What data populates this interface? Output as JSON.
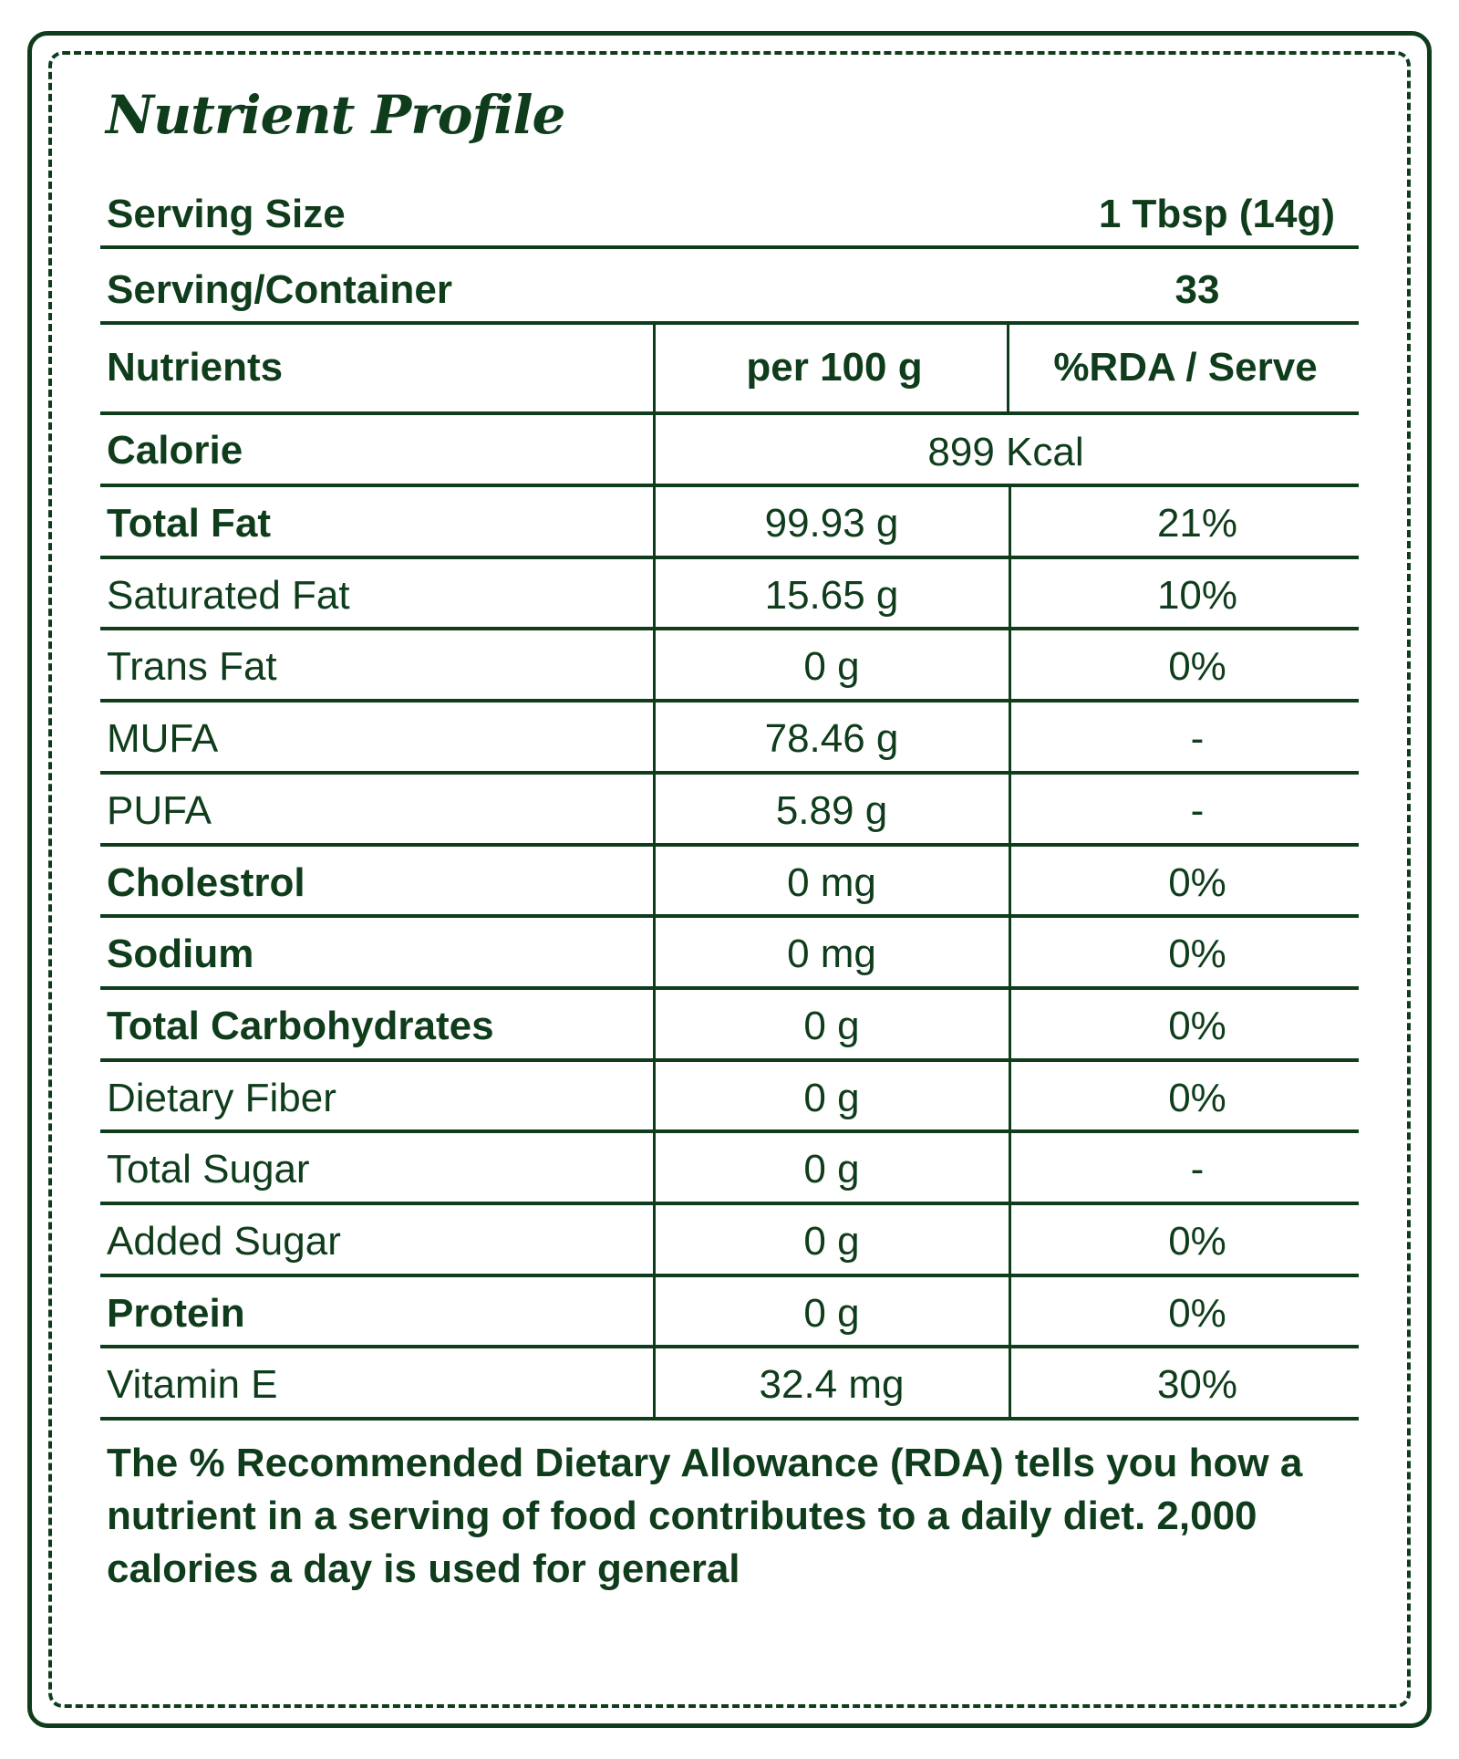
{
  "title": "Nutrient Profile",
  "serving": {
    "size_label": "Serving Size",
    "size_value": "1 Tbsp (14g)",
    "container_label": "Serving/Container",
    "container_value": "33"
  },
  "table": {
    "headers": [
      "Nutrients",
      "per 100 g",
      "%RDA / Serve"
    ],
    "calorie": {
      "label": "Calorie",
      "value": "899 Kcal"
    },
    "rows": [
      {
        "name": "Total Fat",
        "per100": "99.93 g",
        "rda": "21%",
        "bold": true
      },
      {
        "name": "Saturated Fat",
        "per100": "15.65 g",
        "rda": "10%",
        "bold": false
      },
      {
        "name": "Trans Fat",
        "per100": "0 g",
        "rda": "0%",
        "bold": false
      },
      {
        "name": "MUFA",
        "per100": "78.46 g",
        "rda": "-",
        "bold": false
      },
      {
        "name": "PUFA",
        "per100": "5.89 g",
        "rda": "-",
        "bold": false
      },
      {
        "name": "Cholestrol",
        "per100": "0 mg",
        "rda": "0%",
        "bold": true
      },
      {
        "name": "Sodium",
        "per100": "0 mg",
        "rda": "0%",
        "bold": true
      },
      {
        "name": "Total Carbohydrates",
        "per100": "0 g",
        "rda": "0%",
        "bold": true
      },
      {
        "name": "Dietary Fiber",
        "per100": "0 g",
        "rda": "0%",
        "bold": false
      },
      {
        "name": "Total Sugar",
        "per100": "0 g",
        "rda": "-",
        "bold": false
      },
      {
        "name": "Added Sugar",
        "per100": "0 g",
        "rda": "0%",
        "bold": false
      },
      {
        "name": "Protein",
        "per100": "0 g",
        "rda": "0%",
        "bold": true
      },
      {
        "name": "Vitamin E",
        "per100": "32.4 mg",
        "rda": "30%",
        "bold": false
      }
    ]
  },
  "footnote": "The % Recommended Dietary Allowance (RDA) tells you how a nutrient in a serving of food contributes to a daily diet. 2,000 calories a day is used for general",
  "colors": {
    "ink": "#0f3d1c",
    "background": "#ffffff"
  }
}
